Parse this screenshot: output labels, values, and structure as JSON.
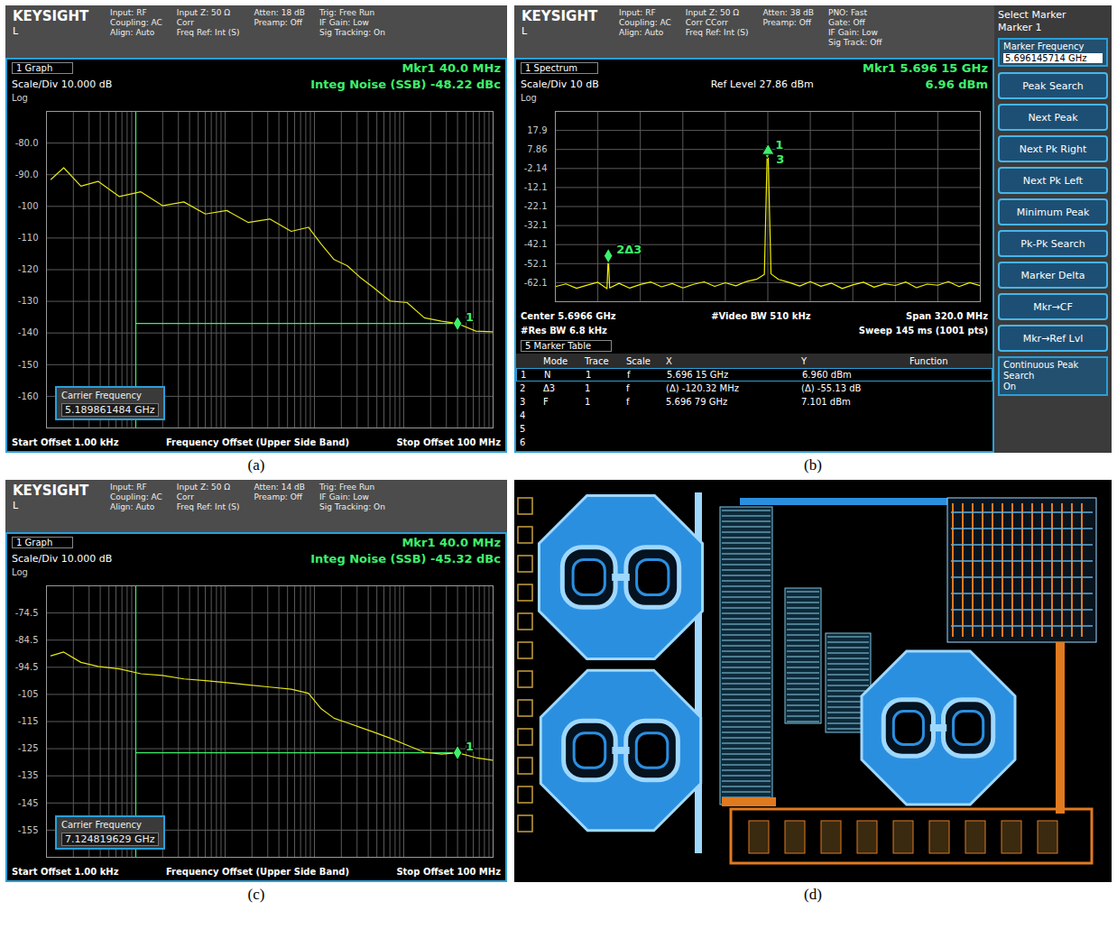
{
  "chart_data": [
    {
      "panel_label": "(a)",
      "type": "line",
      "header": {
        "logo": "KEYSIGHT",
        "mode": "L",
        "columns": [
          [
            "Input: RF",
            "Coupling: AC",
            "Align: Auto"
          ],
          [
            "Input Z: 50 Ω",
            "Corr",
            "Freq Ref: Int (S)"
          ],
          [
            "Atten: 18 dB",
            "Preamp: Off"
          ],
          [
            "Trig: Free Run",
            "IF Gain: Low",
            "Sig Tracking: On"
          ]
        ]
      },
      "view": "1 Graph",
      "scale_text": "Scale/Div 10.000 dB",
      "scale_type": "Log",
      "marker_readout": [
        "Mkr1 40.0 MHz",
        "Integ Noise (SSB) -48.22 dBc"
      ],
      "carrier": {
        "label": "Carrier Frequency",
        "value": "5.189861484 GHz"
      },
      "footer": [
        [
          "Start Offset 1.00 kHz",
          "Frequency Offset (Upper Side Band)",
          "Stop Offset 100 MHz"
        ]
      ],
      "x": [
        1120,
        1560,
        2430,
        3780,
        6560,
        11400,
        19900,
        34500,
        60100,
        104500,
        182000,
        316000,
        550000,
        857000,
        1190000,
        1660000,
        2320000,
        3240000,
        4510000,
        7020000,
        10900000,
        17000000,
        26500000,
        40000000,
        64300000,
        100000000
      ],
      "values": [
        -91.5,
        -87.8,
        -93.6,
        -92.1,
        -96.9,
        -95.4,
        -99.8,
        -98.6,
        -102.4,
        -101.3,
        -105.1,
        -104.0,
        -107.9,
        -106.6,
        -111.9,
        -116.8,
        -118.7,
        -122.4,
        -125.5,
        -129.9,
        -130.4,
        -135.2,
        -136.3,
        -137.0,
        -139.4,
        -139.6
      ],
      "color": "#e4e41c",
      "xlim": [
        1000,
        100000000
      ],
      "xticks": [
        1000,
        2000,
        3000,
        4000,
        5000,
        6000,
        7000,
        8000,
        9000,
        10000,
        20000,
        30000,
        40000,
        50000,
        60000,
        70000,
        80000,
        90000,
        100000,
        200000,
        300000,
        400000,
        500000,
        600000,
        700000,
        800000,
        900000,
        1000000,
        2000000,
        3000000,
        4000000,
        5000000,
        6000000,
        7000000,
        8000000,
        9000000,
        10000000,
        20000000,
        30000000,
        40000000,
        50000000,
        60000000,
        70000000,
        80000000,
        90000000,
        100000000
      ],
      "ylim": [
        -170,
        -70
      ],
      "yticks": [
        {
          "value": -80,
          "label": "-80.0"
        },
        {
          "value": -90,
          "label": "-90.0"
        },
        -100,
        -110,
        -120,
        -130,
        -140,
        -150,
        -160
      ],
      "log": "x",
      "grid": true,
      "tick_labels": "y",
      "markers": [
        {
          "label": "1",
          "x": 40000000,
          "y": -137.0,
          "marker": "diamond"
        }
      ],
      "integration": {
        "start": 10000,
        "stop": 40000000,
        "level": -137.0
      }
    },
    {
      "panel_label": "(b)",
      "type": "line",
      "header": {
        "logo": "KEYSIGHT",
        "mode": "L",
        "columns": [
          [
            "Input: RF",
            "Coupling: AC",
            "Align: Auto"
          ],
          [
            "Input Z: 50 Ω",
            "Corr CCorr",
            "Freq Ref: Int (S)"
          ],
          [
            "Atten: 38 dB",
            "Preamp: Off"
          ],
          [
            "PNO: Fast",
            "Gate: Off",
            "IF Gain: Low",
            "Sig Track: Off"
          ]
        ]
      },
      "view": "1 Spectrum",
      "scale_text": "Scale/Div 10 dB",
      "ref_level": "Ref Level 27.86 dBm",
      "scale_type": "Log",
      "marker_readout": [
        "Mkr1 5.696 15 GHz",
        "6.96 dBm"
      ],
      "footer": [
        [
          "Center 5.6966 GHz",
          "#Video BW 510 kHz",
          "Span 320.0 MHz"
        ],
        [
          "#Res BW 6.8 kHz",
          "Sweep 145 ms (1001 pts)"
        ]
      ],
      "x": [
        5.5366,
        5.5446,
        5.5526,
        5.5606,
        5.5686,
        5.574,
        5.5755,
        5.57647,
        5.5775,
        5.5846,
        5.5926,
        5.6006,
        5.6086,
        5.6166,
        5.6246,
        5.6326,
        5.6406,
        5.6486,
        5.6566,
        5.6646,
        5.6726,
        5.6806,
        5.6886,
        5.694,
        5.69615,
        5.69679,
        5.699,
        5.7046,
        5.7126,
        5.7206,
        5.7286,
        5.7366,
        5.7446,
        5.7526,
        5.7606,
        5.7686,
        5.7766,
        5.7846,
        5.7926,
        5.8006,
        5.8086,
        5.8166,
        5.8246,
        5.8326,
        5.8406,
        5.8486,
        5.8566
      ],
      "values": [
        -64.2,
        -62.8,
        -65.1,
        -63.4,
        -61.9,
        -64.6,
        -65.3,
        -48.03,
        -64.9,
        -62.5,
        -65.0,
        -63.1,
        -61.8,
        -64.3,
        -62.6,
        -64.9,
        -63.0,
        -61.7,
        -64.1,
        -62.2,
        -63.8,
        -61.5,
        -60.2,
        -57.8,
        6.96,
        7.101,
        -57.5,
        -60.4,
        -62.0,
        -63.9,
        -61.6,
        -64.0,
        -62.4,
        -65.2,
        -63.3,
        -61.9,
        -64.5,
        -62.7,
        -63.6,
        -61.8,
        -64.8,
        -62.9,
        -63.5,
        -61.6,
        -64.2,
        -62.1,
        -63.7
      ],
      "color": "#f0f000",
      "xlim": [
        5.5366,
        5.8566
      ],
      "xticks": [
        5.5366,
        5.5686,
        5.6006,
        5.6326,
        5.6646,
        5.6966,
        5.7286,
        5.7606,
        5.7926,
        5.8246,
        5.8566
      ],
      "ylim": [
        -72.14,
        27.86
      ],
      "yticks": [
        {
          "value": 17.86,
          "label": "17.9"
        },
        7.86,
        -2.14,
        {
          "value": -12.14,
          "label": "-12.1"
        },
        {
          "value": -22.14,
          "label": "-22.1"
        },
        {
          "value": -32.14,
          "label": "-32.1"
        },
        {
          "value": -42.14,
          "label": "-42.1"
        },
        {
          "value": -52.14,
          "label": "-52.1"
        },
        {
          "value": -62.14,
          "label": "-62.1"
        }
      ],
      "grid": true,
      "tick_labels": "y",
      "markers": [
        {
          "label": "1",
          "x": 5.69615,
          "y": 6.96,
          "marker": "diamond"
        },
        {
          "label": "2Δ3",
          "x": 5.57647,
          "y": -48.03,
          "marker": "diamond"
        },
        {
          "label": "3",
          "x": 5.69679,
          "y": 7.101,
          "marker": "triangle"
        }
      ],
      "table": {
        "title": "5 Marker Table",
        "columns": [
          "Mode",
          "Trace",
          "Scale",
          "X",
          "Y",
          "Function"
        ],
        "rows": [
          [
            "1",
            "N",
            "1",
            "f",
            "5.696 15 GHz",
            "6.960 dBm"
          ],
          [
            "2",
            "Δ3",
            "1",
            "f",
            "(Δ) -120.32 MHz",
            "(Δ) -55.13 dB"
          ],
          [
            "3",
            "F",
            "1",
            "f",
            "5.696 79 GHz",
            "7.101 dBm"
          ],
          [
            "4"
          ],
          [
            "5"
          ],
          [
            "6"
          ]
        ]
      },
      "sidebar": {
        "title": "Select Marker",
        "subtitle": "Marker 1",
        "field_label": "Marker Frequency",
        "field_value": "5.696145714 GHz",
        "buttons": [
          "Peak Search",
          "Next Peak",
          "Next Pk Right",
          "Next Pk Left",
          "Minimum Peak",
          "Pk-Pk Search",
          "Marker Delta",
          "Mkr→CF",
          "Mkr→Ref Lvl"
        ],
        "footer": "Continuous Peak Search",
        "footer_value": "On"
      }
    },
    {
      "panel_label": "(c)",
      "type": "line",
      "header": {
        "logo": "KEYSIGHT",
        "mode": "L",
        "columns": [
          [
            "Input: RF",
            "Coupling: AC",
            "Align: Auto"
          ],
          [
            "Input Z: 50 Ω",
            "Corr",
            "Freq Ref: Int (S)"
          ],
          [
            "Atten: 14 dB",
            "Preamp: Off"
          ],
          [
            "Trig: Free Run",
            "IF Gain: Low",
            "Sig Tracking: On"
          ]
        ]
      },
      "view": "1 Graph",
      "scale_text": "Scale/Div 10.000 dB",
      "scale_type": "Log",
      "marker_readout": [
        "Mkr1 40.0 MHz",
        "Integ Noise (SSB) -45.32 dBc"
      ],
      "carrier": {
        "label": "Carrier Frequency",
        "value": "7.124819629 GHz"
      },
      "footer": [
        [
          "Start Offset 1.00 kHz",
          "Frequency Offset (Upper Side Band)",
          "Stop Offset 100 MHz"
        ]
      ],
      "x": [
        1120,
        1560,
        2430,
        3780,
        6560,
        11400,
        19900,
        34500,
        60100,
        104500,
        182000,
        316000,
        550000,
        857000,
        1190000,
        1660000,
        2320000,
        3240000,
        4510000,
        7020000,
        10900000,
        17000000,
        26500000,
        40000000,
        64300000,
        100000000
      ],
      "values": [
        -90.3,
        -88.9,
        -92.7,
        -94.2,
        -95.1,
        -96.9,
        -97.5,
        -98.8,
        -99.4,
        -100.2,
        -101.0,
        -101.8,
        -102.6,
        -104.1,
        -109.8,
        -113.3,
        -114.9,
        -116.6,
        -118.3,
        -120.6,
        -123.2,
        -125.8,
        -126.5,
        -126.0,
        -127.8,
        -128.8
      ],
      "color": "#e4e41c",
      "xlim": [
        1000,
        100000000
      ],
      "xticks": [
        1000,
        2000,
        3000,
        4000,
        5000,
        6000,
        7000,
        8000,
        9000,
        10000,
        20000,
        30000,
        40000,
        50000,
        60000,
        70000,
        80000,
        90000,
        100000,
        200000,
        300000,
        400000,
        500000,
        600000,
        700000,
        800000,
        900000,
        1000000,
        2000000,
        3000000,
        4000000,
        5000000,
        6000000,
        7000000,
        8000000,
        9000000,
        10000000,
        20000000,
        30000000,
        40000000,
        50000000,
        60000000,
        70000000,
        80000000,
        90000000,
        100000000
      ],
      "ylim": [
        -164.5,
        -64.5
      ],
      "yticks": [
        -74.5,
        -84.5,
        -94.5,
        {
          "value": -104.5,
          "label": "-105"
        },
        {
          "value": -114.5,
          "label": "-115"
        },
        {
          "value": -124.5,
          "label": "-125"
        },
        {
          "value": -134.5,
          "label": "-135"
        },
        {
          "value": -144.5,
          "label": "-145"
        },
        {
          "value": -154.5,
          "label": "-155"
        }
      ],
      "log": "x",
      "grid": true,
      "tick_labels": "y",
      "markers": [
        {
          "label": "1",
          "x": 40000000,
          "y": -126.0,
          "marker": "diamond"
        }
      ],
      "integration": {
        "start": 10000,
        "stop": 40000000,
        "level": -126.0
      }
    }
  ],
  "layout_panel": {
    "panel_label": "(d)"
  }
}
